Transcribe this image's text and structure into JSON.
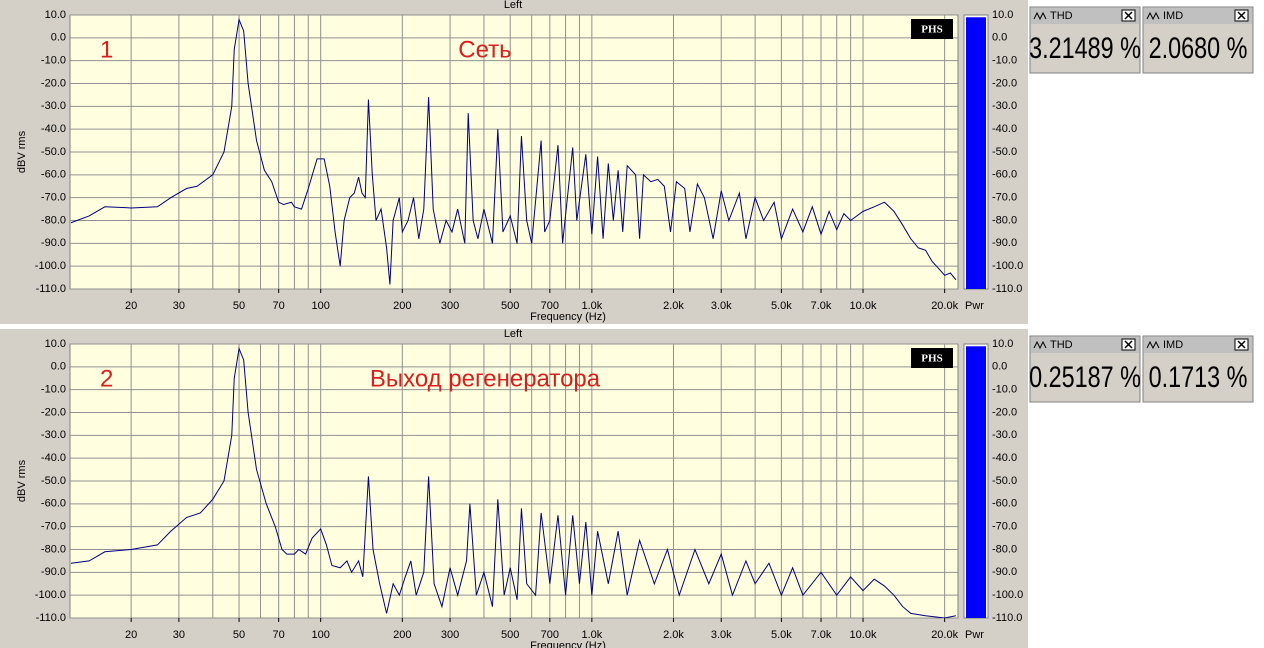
{
  "chart_data": [
    {
      "type": "line",
      "title": "Left",
      "xlabel": "Frequency (Hz)",
      "ylabel": "dBV rms",
      "logo": "PHS",
      "annotations": [
        "1",
        "Сеть"
      ],
      "xscale": "log",
      "grid": true,
      "xlim": [
        11.9,
        22400
      ],
      "ylim": [
        -110,
        10
      ],
      "xticks": [
        20,
        30,
        50,
        70,
        100,
        200,
        300,
        500,
        700,
        {
          "value": 1000,
          "label": "1.0k"
        },
        {
          "value": 2000,
          "label": "2.0k"
        },
        {
          "value": 3000,
          "label": "3.0k"
        },
        {
          "value": 5000,
          "label": "5.0k"
        },
        {
          "value": 7000,
          "label": "7.0k"
        },
        {
          "value": 10000,
          "label": "10.0k"
        },
        {
          "value": 20000,
          "label": "20.0k"
        }
      ],
      "yticks": [
        {
          "value": 10,
          "label": "10.0"
        },
        {
          "value": 0,
          "label": "0.0"
        },
        {
          "value": -10,
          "label": "-10.0"
        },
        {
          "value": -20,
          "label": "-20.0"
        },
        {
          "value": -30,
          "label": "-30.0"
        },
        {
          "value": -40,
          "label": "-40.0"
        },
        {
          "value": -50,
          "label": "-50.0"
        },
        {
          "value": -60,
          "label": "-60.0"
        },
        {
          "value": -70,
          "label": "-70.0"
        },
        {
          "value": -80,
          "label": "-80.0"
        },
        {
          "value": -90,
          "label": "-90.0"
        },
        {
          "value": -100,
          "label": "-100.0"
        },
        {
          "value": -110,
          "label": "-110.0"
        }
      ],
      "series": [
        {
          "color": "#00007f",
          "x": [
            12,
            14,
            16,
            20,
            25,
            28,
            32,
            35,
            40,
            44,
            47,
            48,
            50,
            52,
            54,
            58,
            62,
            66,
            70,
            73,
            78,
            80,
            85,
            90,
            97,
            103,
            108,
            113,
            118,
            122,
            128,
            133,
            138,
            142,
            146,
            150,
            155,
            160,
            167,
            175,
            180,
            185,
            195,
            200,
            210,
            220,
            230,
            240,
            250,
            260,
            275,
            290,
            305,
            320,
            340,
            350,
            365,
            380,
            400,
            430,
            450,
            470,
            500,
            530,
            550,
            575,
            600,
            650,
            670,
            700,
            750,
            780,
            850,
            880,
            950,
            1000,
            1050,
            1100,
            1150,
            1200,
            1250,
            1300,
            1350,
            1450,
            1500,
            1550,
            1650,
            1750,
            1850,
            1950,
            2050,
            2200,
            2300,
            2450,
            2600,
            2800,
            3000,
            3200,
            3500,
            3700,
            4000,
            4300,
            4700,
            5000,
            5500,
            6000,
            6500,
            7000,
            7500,
            8000,
            8500,
            9000,
            10000,
            11000,
            12000,
            13000,
            14000,
            15000,
            16000,
            17000,
            18000,
            19000,
            20000,
            21000,
            22000
          ],
          "values": [
            -81,
            -78,
            -74,
            -74.5,
            -74,
            -70,
            -66,
            -65,
            -60,
            -50,
            -30,
            -5,
            8,
            3,
            -20,
            -45,
            -58,
            -63,
            -72,
            -73,
            -72,
            -74,
            -75,
            -66,
            -53,
            -53,
            -65,
            -85,
            -100,
            -80,
            -70,
            -68,
            -61,
            -68,
            -70,
            -27,
            -60,
            -80,
            -75,
            -92,
            -108,
            -80,
            -70,
            -85,
            -80,
            -70,
            -88,
            -75,
            -26,
            -75,
            -90,
            -80,
            -85,
            -75,
            -90,
            -33,
            -80,
            -88,
            -75,
            -90,
            -40,
            -85,
            -78,
            -90,
            -43,
            -80,
            -90,
            -45,
            -85,
            -80,
            -47,
            -90,
            -48,
            -80,
            -51,
            -86,
            -52,
            -88,
            -55,
            -80,
            -58,
            -85,
            -56,
            -60,
            -88,
            -60,
            -63,
            -62,
            -65,
            -85,
            -63,
            -66,
            -85,
            -64,
            -70,
            -88,
            -67,
            -80,
            -68,
            -88,
            -70,
            -80,
            -72,
            -88,
            -75,
            -85,
            -74,
            -86,
            -76,
            -84,
            -77,
            -80,
            -76,
            -74,
            -72,
            -76,
            -82,
            -88,
            -92,
            -93,
            -98,
            -101,
            -104,
            -103,
            -106
          ]
        }
      ],
      "meter": {
        "label": "Pwr",
        "value": 9,
        "color": "#0000ff"
      },
      "readouts": [
        {
          "label": "THD",
          "value": "3.21489 %"
        },
        {
          "label": "IMD",
          "value": "2.0680 %"
        }
      ]
    },
    {
      "type": "line",
      "title": "Left",
      "xlabel": "Frequency (Hz)",
      "ylabel": "dBV rms",
      "logo": "PHS",
      "annotations": [
        "2",
        "Выход регенератора"
      ],
      "xscale": "log",
      "grid": true,
      "xlim": [
        11.9,
        22400
      ],
      "ylim": [
        -110,
        10
      ],
      "xticks": [
        20,
        30,
        50,
        70,
        100,
        200,
        300,
        500,
        700,
        {
          "value": 1000,
          "label": "1.0k"
        },
        {
          "value": 2000,
          "label": "2.0k"
        },
        {
          "value": 3000,
          "label": "3.0k"
        },
        {
          "value": 5000,
          "label": "5.0k"
        },
        {
          "value": 7000,
          "label": "7.0k"
        },
        {
          "value": 10000,
          "label": "10.0k"
        },
        {
          "value": 20000,
          "label": "20.0k"
        }
      ],
      "yticks": [
        {
          "value": 10,
          "label": "10.0"
        },
        {
          "value": 0,
          "label": "0.0"
        },
        {
          "value": -10,
          "label": "-10.0"
        },
        {
          "value": -20,
          "label": "-20.0"
        },
        {
          "value": -30,
          "label": "-30.0"
        },
        {
          "value": -40,
          "label": "-40.0"
        },
        {
          "value": -50,
          "label": "-50.0"
        },
        {
          "value": -60,
          "label": "-60.0"
        },
        {
          "value": -70,
          "label": "-70.0"
        },
        {
          "value": -80,
          "label": "-80.0"
        },
        {
          "value": -90,
          "label": "-90.0"
        },
        {
          "value": -100,
          "label": "-100.0"
        },
        {
          "value": -110,
          "label": "-110.0"
        }
      ],
      "series": [
        {
          "color": "#00007f",
          "x": [
            12,
            14,
            16,
            20,
            25,
            28,
            32,
            36,
            40,
            44,
            47,
            48,
            50,
            52,
            54,
            58,
            63,
            68,
            72,
            75,
            80,
            83,
            88,
            93,
            100,
            105,
            110,
            118,
            125,
            130,
            138,
            143,
            150,
            156,
            165,
            175,
            185,
            195,
            205,
            215,
            225,
            240,
            250,
            262,
            280,
            300,
            320,
            345,
            355,
            375,
            400,
            430,
            450,
            475,
            500,
            530,
            550,
            575,
            620,
            650,
            700,
            750,
            800,
            850,
            900,
            950,
            1000,
            1050,
            1150,
            1250,
            1350,
            1500,
            1700,
            1900,
            2100,
            2400,
            2700,
            3000,
            3300,
            3700,
            4000,
            4500,
            5000,
            5500,
            6000,
            7000,
            8000,
            9000,
            10000,
            11000,
            12000,
            13000,
            14000,
            15000,
            17000,
            20000,
            22000
          ],
          "values": [
            -86,
            -85,
            -81,
            -80,
            -78,
            -72,
            -66,
            -64,
            -58,
            -50,
            -30,
            -5,
            8,
            3,
            -20,
            -45,
            -60,
            -70,
            -80,
            -82,
            -82,
            -80,
            -82,
            -75,
            -71,
            -78,
            -87,
            -88,
            -85,
            -90,
            -85,
            -92,
            -48,
            -80,
            -95,
            -108,
            -95,
            -100,
            -92,
            -85,
            -100,
            -90,
            -48,
            -95,
            -105,
            -88,
            -100,
            -85,
            -60,
            -100,
            -90,
            -105,
            -58,
            -100,
            -88,
            -102,
            -62,
            -95,
            -100,
            -64,
            -95,
            -65,
            -100,
            -65,
            -95,
            -68,
            -100,
            -72,
            -95,
            -72,
            -100,
            -76,
            -95,
            -80,
            -100,
            -80,
            -95,
            -82,
            -100,
            -85,
            -95,
            -86,
            -100,
            -88,
            -100,
            -90,
            -100,
            -92,
            -98,
            -93,
            -96,
            -100,
            -105,
            -108,
            -109,
            -110,
            -109
          ]
        }
      ],
      "meter": {
        "label": "Pwr",
        "value": 9,
        "color": "#0000ff"
      },
      "readouts": [
        {
          "label": "THD",
          "value": "0.25187 %"
        },
        {
          "label": "IMD",
          "value": "0.1713 %"
        }
      ]
    }
  ]
}
